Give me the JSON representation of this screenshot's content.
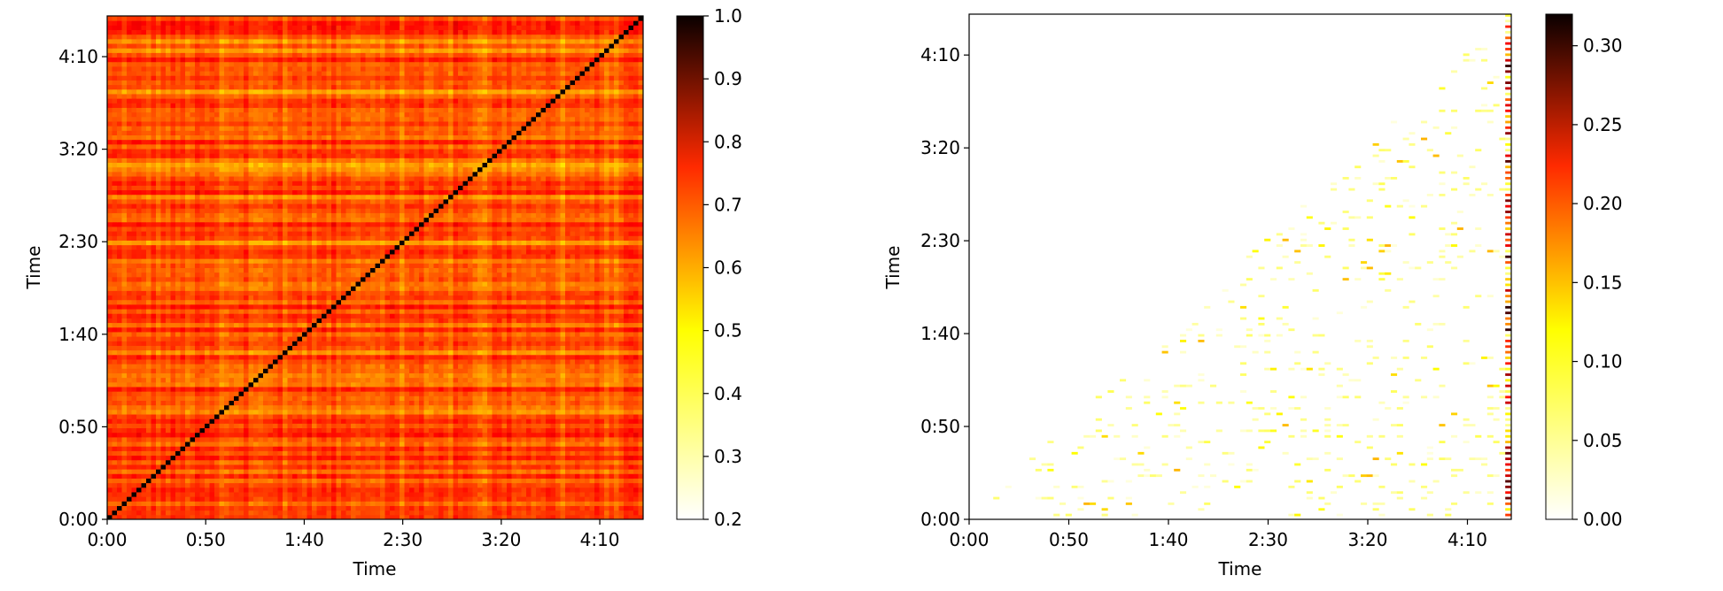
{
  "chart_data": [
    {
      "type": "heatmap",
      "title": "",
      "xlabel": "Time",
      "ylabel": "Time",
      "x_ticks": [
        "0:00",
        "0:50",
        "1:40",
        "2:30",
        "3:20",
        "4:10"
      ],
      "y_ticks": [
        "0:00",
        "0:50",
        "1:40",
        "2:30",
        "3:20",
        "4:10"
      ],
      "tick_seconds": [
        0,
        50,
        100,
        150,
        200,
        250
      ],
      "duration_seconds": 272,
      "colormap": "hot_r",
      "colorbar": {
        "min": 0.2,
        "max": 1.0,
        "ticks": [
          "0.2",
          "0.3",
          "0.4",
          "0.5",
          "0.6",
          "0.7",
          "0.8",
          "0.9",
          "1.0"
        ],
        "tick_values": [
          0.2,
          0.3,
          0.4,
          0.5,
          0.6,
          0.7,
          0.8,
          0.9,
          1.0
        ]
      },
      "description_values": {
        "diagonal": 1.0,
        "typical_off_diagonal": 0.65,
        "low_bands": 0.4
      }
    },
    {
      "type": "heatmap",
      "title": "",
      "xlabel": "Time",
      "ylabel": "Time",
      "x_ticks": [
        "0:00",
        "0:50",
        "1:40",
        "2:30",
        "3:20",
        "4:10"
      ],
      "y_ticks": [
        "0:00",
        "0:50",
        "1:40",
        "2:30",
        "3:20",
        "4:10"
      ],
      "tick_seconds": [
        0,
        50,
        100,
        150,
        200,
        250
      ],
      "duration_seconds": 272,
      "colormap": "hot_r",
      "colorbar": {
        "min": 0.0,
        "max": 0.32,
        "ticks": [
          "0.00",
          "0.05",
          "0.10",
          "0.15",
          "0.20",
          "0.25",
          "0.30"
        ],
        "tick_values": [
          0.0,
          0.05,
          0.1,
          0.15,
          0.2,
          0.25,
          0.3
        ]
      },
      "description_values": {
        "right_edge_max": 0.32,
        "scattered_min": 0.0
      }
    }
  ]
}
